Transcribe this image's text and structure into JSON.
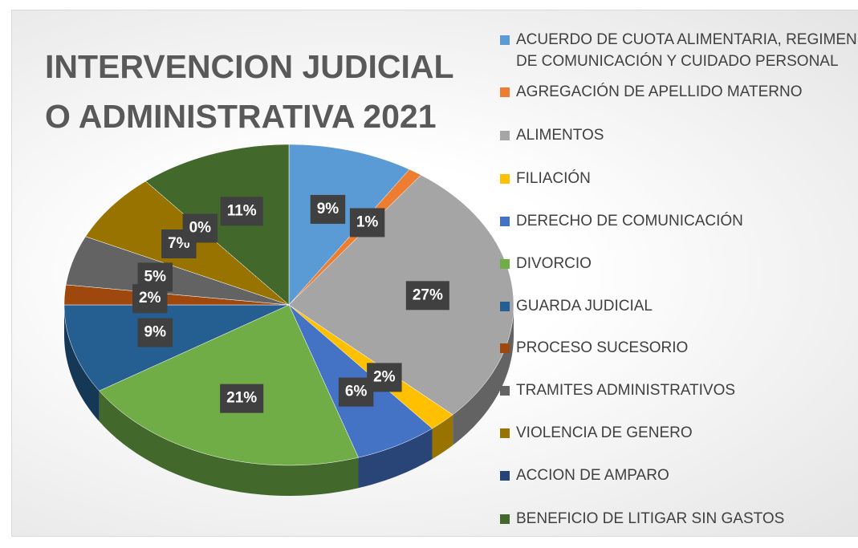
{
  "chart_data": {
    "type": "pie",
    "title": "INTERVENCION JUDICIAL O ADMINISTRATIVA 2021",
    "categories": [
      "ACUERDO DE CUOTA ALIMENTARIA, REGIMEN DE COMUNICACIÓN Y CUIDADO PERSONAL",
      "AGREGACIÓN DE APELLIDO MATERNO",
      "ALIMENTOS",
      "FILIACIÓN",
      "DERECHO DE COMUNICACIÓN",
      "DIVORCIO",
      "GUARDA JUDICIAL",
      "PROCESO SUCESORIO",
      "TRAMITES ADMINISTRATIVOS",
      "VIOLENCIA DE GENERO",
      "ACCION DE AMPARO",
      "BENEFICIO DE LITIGAR SIN GASTOS"
    ],
    "values": [
      9,
      1,
      27,
      2,
      6,
      21,
      9,
      2,
      5,
      7,
      0,
      11
    ],
    "value_labels": [
      "9%",
      "1%",
      "27%",
      "2%",
      "6%",
      "21%",
      "9%",
      "2%",
      "5%",
      "7%",
      "0%",
      "11%"
    ],
    "colors": [
      "#5b9bd5",
      "#ed7d31",
      "#a5a5a5",
      "#ffc000",
      "#4472c4",
      "#70ad47",
      "#255e91",
      "#9e480e",
      "#636363",
      "#997300",
      "#264478",
      "#43682b"
    ],
    "legend": "right"
  }
}
